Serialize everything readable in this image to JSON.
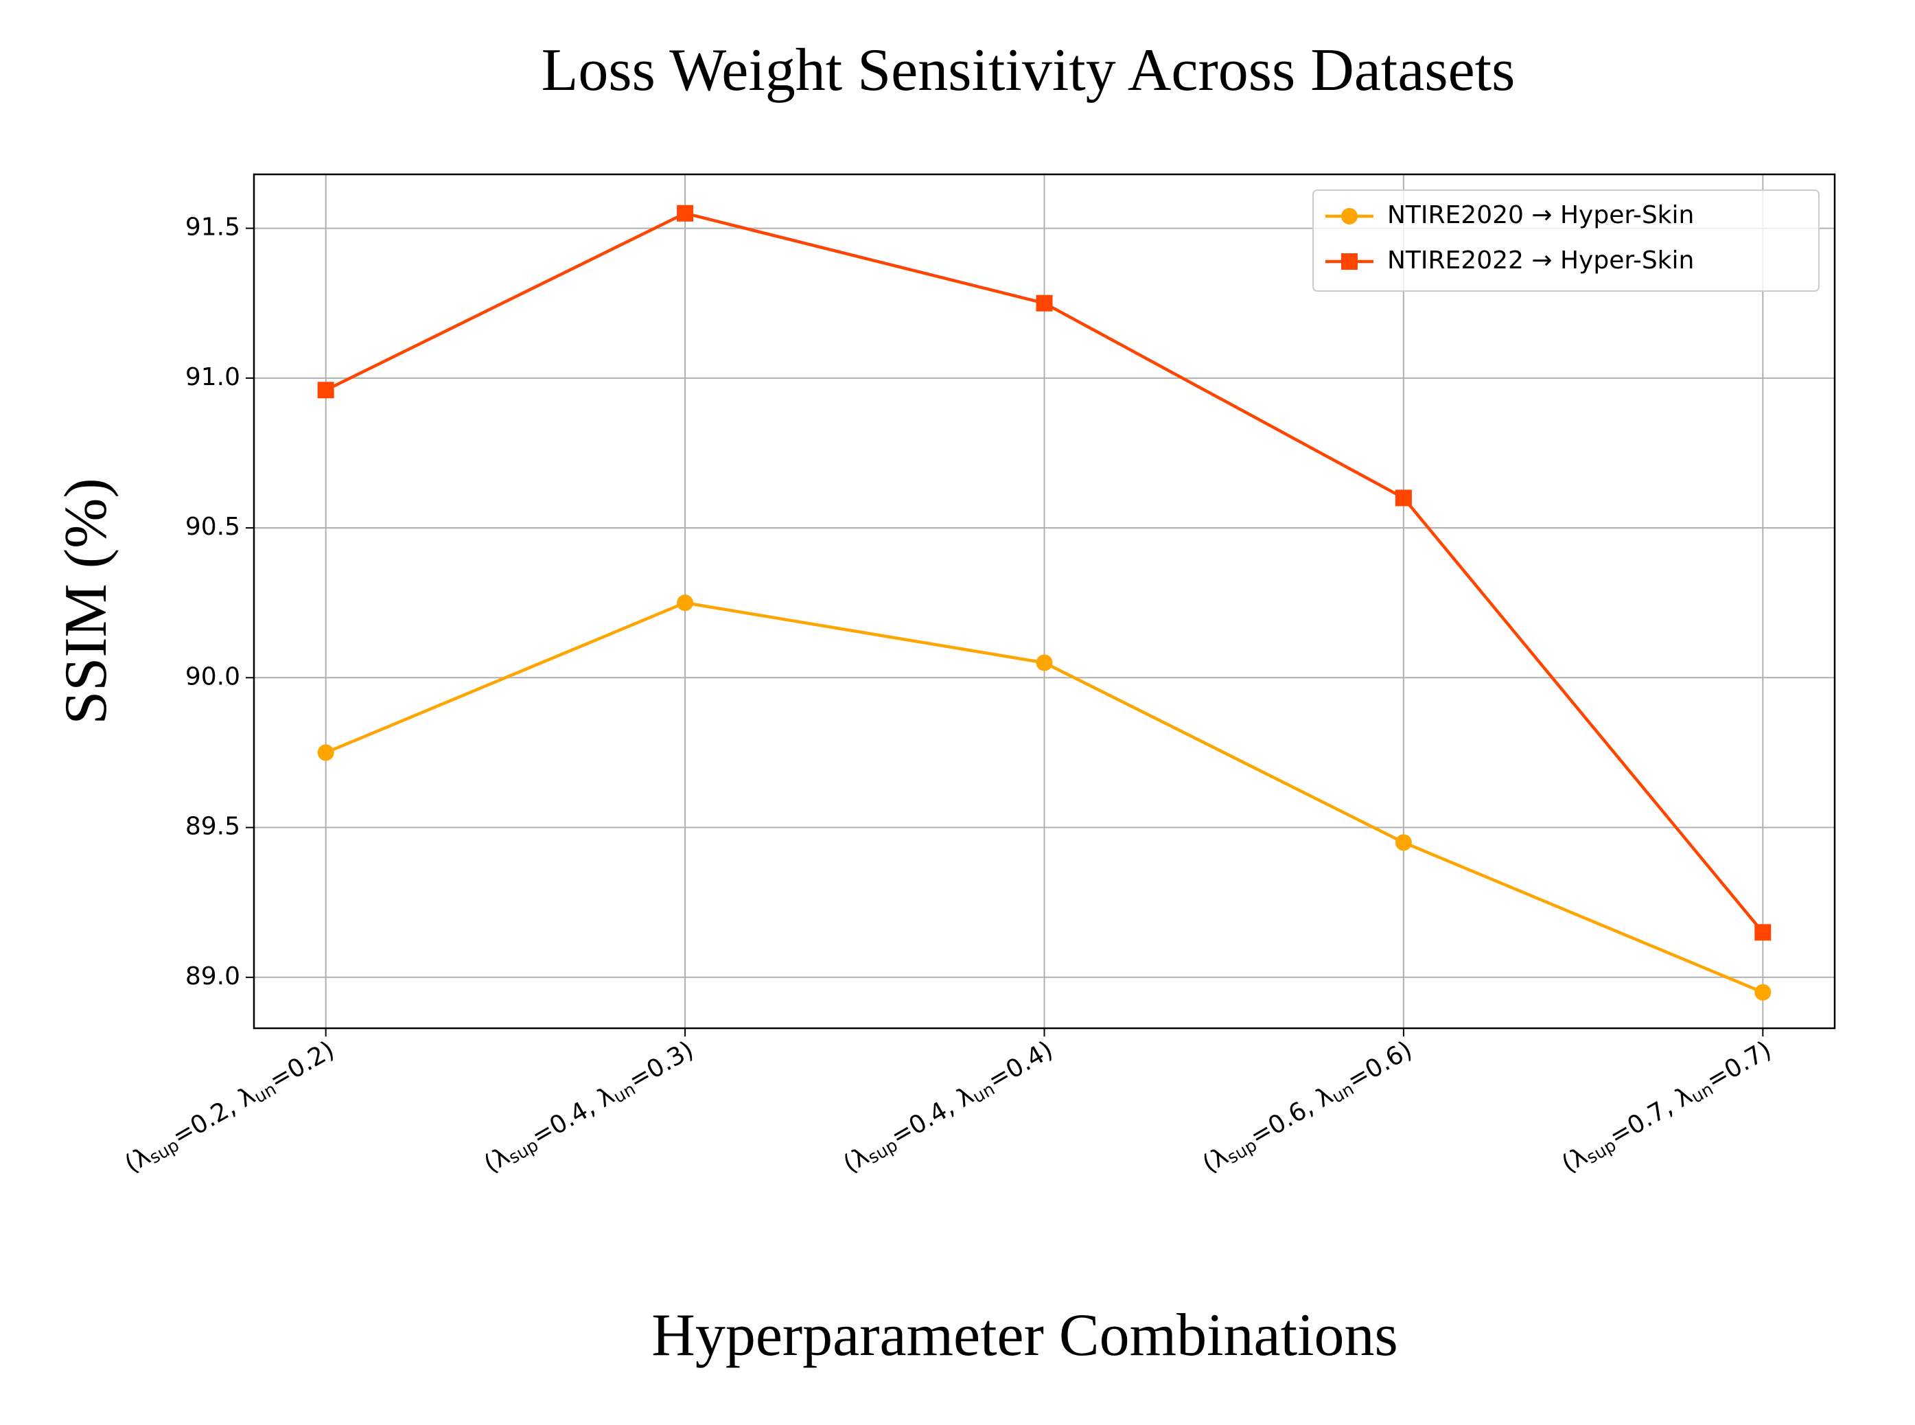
{
  "chart_data": {
    "type": "line",
    "title": "Loss Weight Sensitivity Across Datasets",
    "xlabel": "Hyperparameter Combinations",
    "ylabel": "SSIM (%)",
    "categories": [
      "(λsup=0.2, λun=0.2)",
      "(λsup=0.4, λun=0.3)",
      "(λsup=0.4, λun=0.4)",
      "(λsup=0.6, λun=0.6)",
      "(λsup=0.7, λun=0.7)"
    ],
    "series": [
      {
        "name": "NTIRE2020 → Hyper-Skin",
        "color": "#ffa500",
        "marker": "circle",
        "values": [
          89.75,
          90.25,
          90.05,
          89.45,
          88.95
        ]
      },
      {
        "name": "NTIRE2022 → Hyper-Skin",
        "color": "#ff4500",
        "marker": "square",
        "values": [
          90.96,
          91.55,
          91.25,
          90.6,
          89.15
        ]
      }
    ],
    "ylim": [
      88.83,
      91.68
    ],
    "yticks": [
      {
        "value": 89,
        "label": "89.0"
      },
      89.5,
      {
        "value": 90,
        "label": "90.0"
      },
      90.5,
      {
        "value": 91,
        "label": "91.0"
      },
      91.5
    ],
    "grid": true,
    "legend": "upper right"
  }
}
